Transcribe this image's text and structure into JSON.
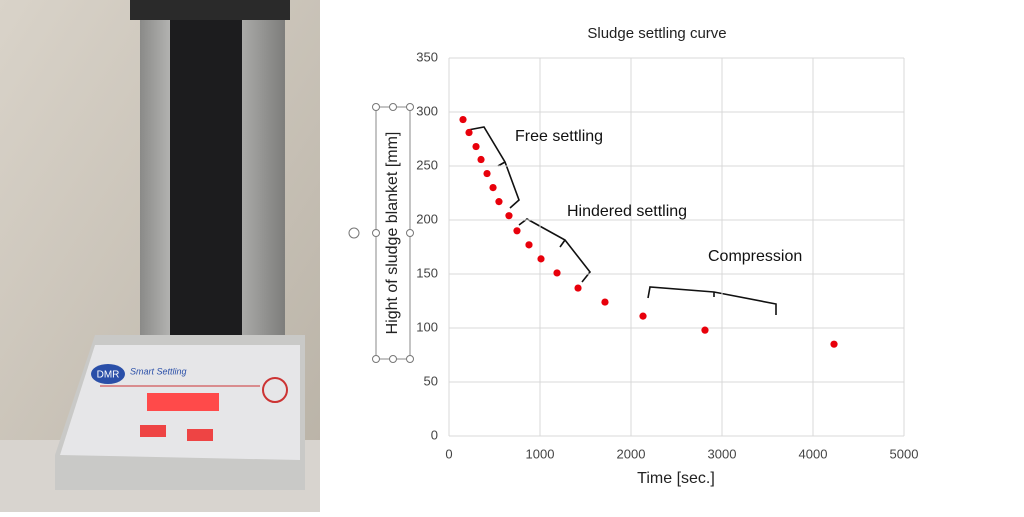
{
  "photo": {
    "brand": "DMR",
    "product": "Smart Settling"
  },
  "chart_data": {
    "type": "scatter",
    "title": "Sludge settling curve",
    "x_label": "Time [sec.]",
    "y_label": "Hight of sludge blanket [mm]",
    "x": [
      154,
      220,
      297,
      352,
      418,
      484,
      549,
      659,
      747,
      879,
      1011,
      1187,
      1418,
      1714,
      2132,
      2813,
      4231
    ],
    "values": [
      293,
      281,
      268,
      256,
      243,
      230,
      217,
      204,
      190,
      177,
      164,
      151,
      137,
      124,
      111,
      98,
      85
    ],
    "color": "#e8000b",
    "xlim": [
      0,
      5000
    ],
    "xticks": [
      0,
      1000,
      2000,
      3000,
      4000,
      5000
    ],
    "ylim": [
      0,
      350
    ],
    "yticks": [
      0,
      50,
      100,
      150,
      200,
      250,
      300,
      350
    ],
    "grid": true,
    "annotations": [
      "Free settling",
      "Hindered settling",
      "Compression"
    ]
  }
}
